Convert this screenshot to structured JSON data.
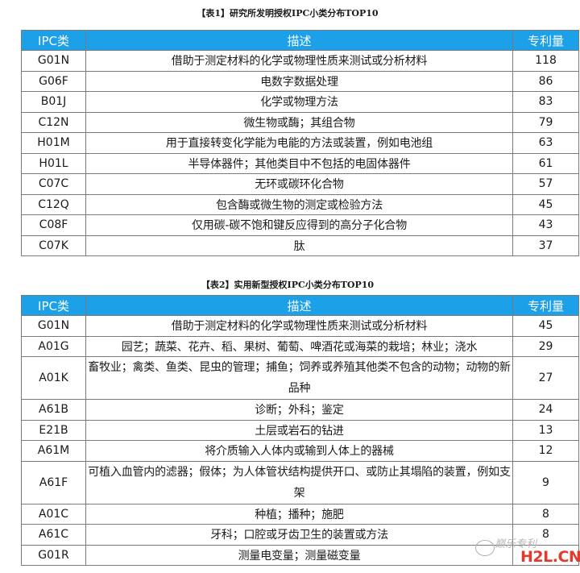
{
  "table1": {
    "caption": "【表1】研究所发明授权IPC小类分布TOP10",
    "headers": [
      "IPC类",
      "描述",
      "专利量"
    ],
    "rows": [
      {
        "ipc": "G01N",
        "desc": "借助于测定材料的化学或物理性质来测试或分析材料",
        "count": "118"
      },
      {
        "ipc": "G06F",
        "desc": "电数字数据处理",
        "count": "86"
      },
      {
        "ipc": "B01J",
        "desc": "化学或物理方法",
        "count": "83"
      },
      {
        "ipc": "C12N",
        "desc": "微生物或酶；其组合物",
        "count": "79"
      },
      {
        "ipc": "H01M",
        "desc": "用于直接转变化学能为电能的方法或装置，例如电池组",
        "count": "63"
      },
      {
        "ipc": "H01L",
        "desc": "半导体器件；其他类目中不包括的电固体器件",
        "count": "61"
      },
      {
        "ipc": "C07C",
        "desc": "无环或碳环化合物",
        "count": "57"
      },
      {
        "ipc": "C12Q",
        "desc": "包含酶或微生物的测定或检验方法",
        "count": "45"
      },
      {
        "ipc": "C08F",
        "desc": "仅用碳-碳不饱和键反应得到的高分子化合物",
        "count": "43"
      },
      {
        "ipc": "C07K",
        "desc": "肽",
        "count": "37"
      }
    ]
  },
  "table2": {
    "caption": "【表2】实用新型授权IPC小类分布TOP10",
    "headers": [
      "IPC类",
      "描述",
      "专利量"
    ],
    "rows": [
      {
        "ipc": "G01N",
        "desc": "借助于测定材料的化学或物理性质来测试或分析材料",
        "count": "45"
      },
      {
        "ipc": "A01G",
        "desc": "园艺；蔬菜、花卉、稻、果树、葡萄、啤酒花或海菜的栽培；林业；浇水",
        "count": "29"
      },
      {
        "ipc": "A01K",
        "desc": "畜牧业；禽类、鱼类、昆虫的管理；捕鱼；饲养或养殖其他类不包含的动物；动物的新品种",
        "count": "27"
      },
      {
        "ipc": "A61B",
        "desc": "诊断；外科；鉴定",
        "count": "24"
      },
      {
        "ipc": "E21B",
        "desc": "土层或岩石的钻进",
        "count": "13"
      },
      {
        "ipc": "A61M",
        "desc": "将介质输入人体内或输到人体上的器械",
        "count": "12"
      },
      {
        "ipc": "A61F",
        "desc": "可植入血管内的滤器；假体；为人体管状结构提供开口、或防止其塌陷的装置，例如支架",
        "count": "9"
      },
      {
        "ipc": "A01C",
        "desc": "种植；播种；施肥",
        "count": "8"
      },
      {
        "ipc": "A61C",
        "desc": "牙科；口腔或牙齿卫生的装置或方法",
        "count": "8"
      },
      {
        "ipc": "G01R",
        "desc": "测量电变量；测量磁变量",
        "count": ""
      }
    ]
  },
  "watermark": {
    "label": "巅乐专利",
    "logo": "H2L.CN"
  }
}
